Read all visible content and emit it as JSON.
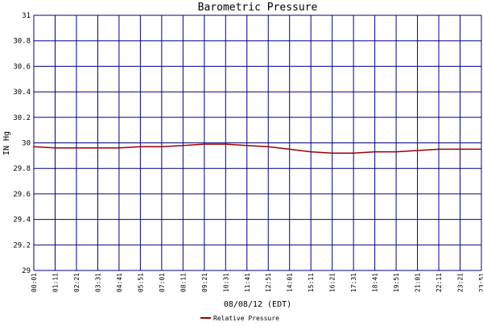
{
  "chart_data": {
    "type": "line",
    "title": "Barometric Pressure",
    "ylabel": "IN Hg",
    "xlabel": "08/08/12 (EDT)",
    "ylim": [
      29,
      31
    ],
    "yticks": [
      "29",
      "29.2",
      "29.4",
      "29.6",
      "29.8",
      "30",
      "30.2",
      "30.4",
      "30.6",
      "30.8",
      "31"
    ],
    "xticks": [
      "00:01",
      "01:11",
      "02:21",
      "03:31",
      "04:41",
      "05:51",
      "07:01",
      "08:11",
      "09:21",
      "10:31",
      "11:41",
      "12:51",
      "14:01",
      "15:11",
      "16:21",
      "17:31",
      "18:41",
      "19:51",
      "21:01",
      "22:11",
      "23:21",
      "23:51"
    ],
    "grid": true,
    "legend_position": "bottom",
    "series": [
      {
        "name": "Relative Pressure",
        "color": "#990000",
        "x": [
          "00:01",
          "01:11",
          "02:21",
          "03:31",
          "04:41",
          "05:51",
          "07:01",
          "08:11",
          "09:21",
          "10:31",
          "11:41",
          "12:51",
          "14:01",
          "15:11",
          "16:21",
          "17:31",
          "18:41",
          "19:51",
          "21:01",
          "22:11",
          "23:21",
          "23:51"
        ],
        "values": [
          29.97,
          29.96,
          29.96,
          29.96,
          29.96,
          29.97,
          29.97,
          29.98,
          29.99,
          29.99,
          29.98,
          29.97,
          29.95,
          29.93,
          29.92,
          29.92,
          29.93,
          29.93,
          29.94,
          29.95,
          29.95,
          29.95
        ]
      }
    ]
  },
  "colors": {
    "grid": "#000080",
    "line": "#990000",
    "background": "#ffffff"
  }
}
